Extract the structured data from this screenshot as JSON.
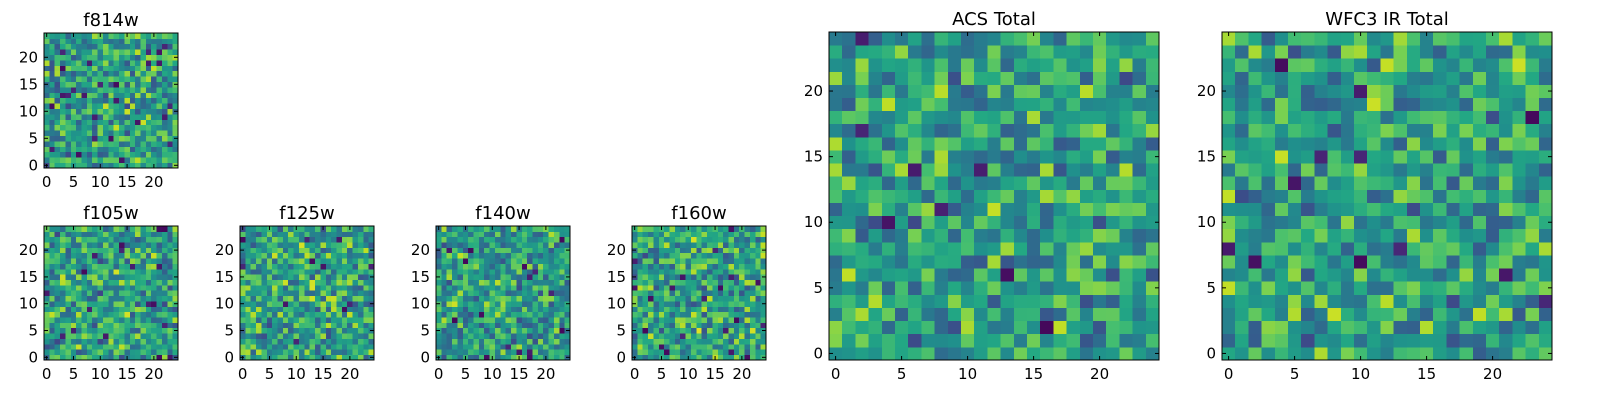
{
  "figure_title": "",
  "chart_data": [
    {
      "id": "f814w",
      "type": "heatmap",
      "title": "f814w",
      "size": 25,
      "colormap": "viridis",
      "xticks": [
        0,
        5,
        10,
        15,
        20
      ],
      "yticks": [
        0,
        5,
        10,
        15,
        20
      ],
      "xlim": [
        0,
        24
      ],
      "ylim": [
        0,
        24
      ],
      "grid": false
    },
    {
      "id": "f105w",
      "type": "heatmap",
      "title": "f105w",
      "size": 25,
      "colormap": "viridis",
      "xticks": [
        0,
        5,
        10,
        15,
        20
      ],
      "yticks": [
        0,
        5,
        10,
        15,
        20
      ],
      "xlim": [
        0,
        24
      ],
      "ylim": [
        0,
        24
      ],
      "grid": false
    },
    {
      "id": "f125w",
      "type": "heatmap",
      "title": "f125w",
      "size": 25,
      "colormap": "viridis",
      "xticks": [
        0,
        5,
        10,
        15,
        20
      ],
      "yticks": [
        0,
        5,
        10,
        15,
        20
      ],
      "xlim": [
        0,
        24
      ],
      "ylim": [
        0,
        24
      ],
      "grid": false
    },
    {
      "id": "f140w",
      "type": "heatmap",
      "title": "f140w",
      "size": 25,
      "colormap": "viridis",
      "xticks": [
        0,
        5,
        10,
        15,
        20
      ],
      "yticks": [
        0,
        5,
        10,
        15,
        20
      ],
      "xlim": [
        0,
        24
      ],
      "ylim": [
        0,
        24
      ],
      "grid": false
    },
    {
      "id": "f160w",
      "type": "heatmap",
      "title": "f160w",
      "size": 25,
      "colormap": "viridis",
      "xticks": [
        0,
        5,
        10,
        15,
        20
      ],
      "yticks": [
        0,
        5,
        10,
        15,
        20
      ],
      "xlim": [
        0,
        24
      ],
      "ylim": [
        0,
        24
      ],
      "grid": false
    },
    {
      "id": "acs_total",
      "type": "heatmap",
      "title": "ACS Total",
      "size": 25,
      "colormap": "viridis",
      "xticks": [
        0,
        5,
        10,
        15,
        20
      ],
      "yticks": [
        0,
        5,
        10,
        15,
        20
      ],
      "xlim": [
        0,
        24
      ],
      "ylim": [
        0,
        24
      ],
      "grid": false
    },
    {
      "id": "wfc3_ir_total",
      "type": "heatmap",
      "title": "WFC3 IR Total",
      "size": 25,
      "colormap": "viridis",
      "xticks": [
        0,
        5,
        10,
        15,
        20
      ],
      "yticks": [
        0,
        5,
        10,
        15,
        20
      ],
      "xlim": [
        0,
        24
      ],
      "ylim": [
        0,
        24
      ],
      "grid": false
    }
  ]
}
